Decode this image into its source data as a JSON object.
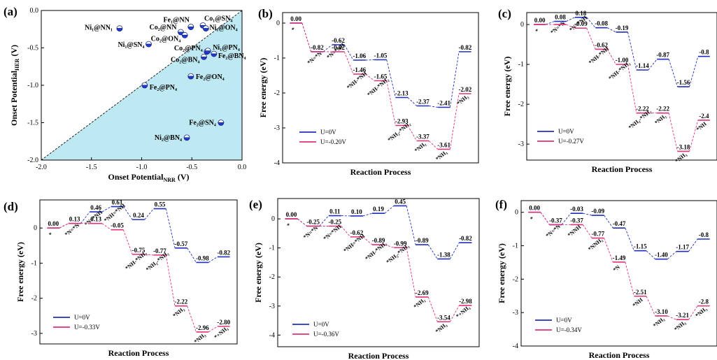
{
  "colors": {
    "blue": "#1f2fbf",
    "pink": "#e0307a",
    "black": "#222222",
    "fill": "#bfe9f2"
  },
  "chart_data": [
    {
      "id": "a",
      "panel_label": "(a)",
      "type": "scatter",
      "xlabel": "Onset Potential",
      "xlabel_sub": "NRR",
      "xlabel_unit": " (V)",
      "ylabel": "Onset Potential",
      "ylabel_sub": "HER",
      "ylabel_unit": " (V)",
      "xlim": [
        -2.0,
        0.0
      ],
      "ylim": [
        -2.0,
        0.0
      ],
      "xticks": [
        "-2.0",
        "-1.5",
        "-1.0",
        "-0.5",
        "0.0"
      ],
      "yticks": [
        "0.0",
        "-0.5",
        "-1.0",
        "-1.5",
        "-2.0"
      ],
      "points": [
        {
          "label": "Ni₁@NN₁",
          "x": -1.22,
          "y": -0.24
        },
        {
          "label": "Fe₁@NN",
          "x": -0.51,
          "y": -0.22
        },
        {
          "label": "Co₁@SN₄",
          "x": -0.39,
          "y": -0.2
        },
        {
          "label": "Ni₁@ON₄",
          "x": -0.36,
          "y": -0.24
        },
        {
          "label": "Co₂@NN",
          "x": -0.61,
          "y": -0.29
        },
        {
          "label": "Co₂@ON₄",
          "x": -0.57,
          "y": -0.33
        },
        {
          "label": "Ni₁@SN₄",
          "x": -0.93,
          "y": -0.45
        },
        {
          "label": "Co₂@PN₄",
          "x": -0.35,
          "y": -0.55
        },
        {
          "label": "Ni₁@PN₄",
          "x": -0.34,
          "y": -0.54
        },
        {
          "label": "Co₂@BN₄",
          "x": -0.38,
          "y": -0.62
        },
        {
          "label": "Fe₂@BN₄",
          "x": -0.28,
          "y": -0.58
        },
        {
          "label": "Fe₂@ON₄",
          "x": -0.51,
          "y": -0.88
        },
        {
          "label": "Fe₂@PN₄",
          "x": -0.97,
          "y": -1.0
        },
        {
          "label": "Fe₂@SN₄",
          "x": -0.21,
          "y": -1.5
        },
        {
          "label": "Ni₂@BN₄",
          "x": -0.55,
          "y": -1.7
        }
      ]
    },
    {
      "id": "b",
      "panel_label": "(b)",
      "type": "line",
      "xlabel": "Reaction Process",
      "ylabel": "Free energy (eV)",
      "ylim": [
        -4,
        0.3
      ],
      "yticks": [
        0,
        -1,
        -2,
        -3,
        -4
      ],
      "series": [
        {
          "name": "U=0V",
          "color_key": "blue",
          "steps": [
            {
              "x": 0,
              "y": 0.0,
              "label": "0.00",
              "species": "*"
            },
            {
              "x": 1,
              "y": -0.82,
              "label": "-0.82",
              "species": "*N=*N"
            },
            {
              "x": 2,
              "y": -0.62,
              "label": "-0.62",
              "species": "*N=*NH"
            },
            {
              "x": 3,
              "y": -1.06,
              "label": "-1.06"
            },
            {
              "x": 4,
              "y": -1.05,
              "label": "-1.05"
            },
            {
              "x": 5,
              "y": -2.13,
              "label": "-2.13"
            },
            {
              "x": 6,
              "y": -2.37,
              "label": "-2.37"
            },
            {
              "x": 7,
              "y": -2.41,
              "label": "-2.41"
            },
            {
              "x": 8,
              "y": -0.82,
              "label": "-0.82"
            }
          ]
        },
        {
          "name": "U=-0.20V",
          "color_key": "pink",
          "steps": [
            {
              "x": 0,
              "y": 0.0
            },
            {
              "x": 1,
              "y": -0.82
            },
            {
              "x": 2,
              "y": -0.82,
              "label": "-0.82"
            },
            {
              "x": 3,
              "y": -1.46,
              "label": "-1.46",
              "species": "*NH-*NH"
            },
            {
              "x": 4,
              "y": -1.65,
              "label": "-1.65",
              "species": "*NH-*NH₂"
            },
            {
              "x": 5,
              "y": -2.93,
              "label": "-2.93",
              "species": "*NH₂-*NH₂"
            },
            {
              "x": 6,
              "y": -3.37,
              "label": "-3.37",
              "species": "*NH₂"
            },
            {
              "x": 7,
              "y": -3.61,
              "label": "-3.61",
              "species": "*NH₃"
            },
            {
              "x": 8,
              "y": -2.02,
              "label": "-2.02",
              "species": "*NH₃"
            }
          ]
        }
      ]
    },
    {
      "id": "c",
      "panel_label": "(c)",
      "type": "line",
      "xlabel": "Reaction Process",
      "ylabel": "Free energy (eV)",
      "ylim": [
        -3.4,
        0.3
      ],
      "yticks": [
        0,
        -1,
        -2,
        -3
      ],
      "series": [
        {
          "name": "U=0V",
          "color_key": "blue",
          "steps": [
            {
              "x": 0,
              "y": 0.0,
              "label": "0.00",
              "species": "*"
            },
            {
              "x": 1,
              "y": 0.08,
              "label": "0.08",
              "species": "*N=*N"
            },
            {
              "x": 2,
              "y": 0.18,
              "label": "0.18",
              "species": "*N=*NH"
            },
            {
              "x": 3,
              "y": -0.08,
              "label": "-0.08"
            },
            {
              "x": 4,
              "y": -0.19,
              "label": "-0.19"
            },
            {
              "x": 5,
              "y": -1.14,
              "label": "-1.14"
            },
            {
              "x": 6,
              "y": -0.87,
              "label": "-0.87"
            },
            {
              "x": 7,
              "y": -1.56,
              "label": "-1.56"
            },
            {
              "x": 8,
              "y": -0.8,
              "label": "-0.8"
            }
          ]
        },
        {
          "name": "U=-0.27V",
          "color_key": "pink",
          "steps": [
            {
              "x": 0,
              "y": 0.0
            },
            {
              "x": 1,
              "y": 0.0
            },
            {
              "x": 2,
              "y": -0.09,
              "label": "-0.09"
            },
            {
              "x": 3,
              "y": -0.62,
              "label": "-0.62",
              "species": "*NH-*NH"
            },
            {
              "x": 4,
              "y": -1.0,
              "label": "-1.00",
              "species": "*NH-*NH₂"
            },
            {
              "x": 5,
              "y": -2.22,
              "label": "-2.22",
              "species": "*NH₂-*NH₂"
            },
            {
              "x": 6,
              "y": -2.22,
              "label": "-2.22",
              "species": "*NH₂"
            },
            {
              "x": 7,
              "y": -3.18,
              "label": "-3.18",
              "species": "*NH₃"
            },
            {
              "x": 8,
              "y": -2.4,
              "label": "-2.4",
              "species": "*NH"
            }
          ]
        }
      ]
    },
    {
      "id": "d",
      "panel_label": "(d)",
      "type": "line",
      "xlabel": "Reaction Process",
      "ylabel": "Free energy (eV)",
      "ylim": [
        -3.3,
        0.8
      ],
      "yticks": [
        0,
        -1,
        -2,
        -3
      ],
      "series": [
        {
          "name": "U=0V",
          "color_key": "blue",
          "steps": [
            {
              "x": 0,
              "y": 0.0,
              "label": "0.00",
              "species": "*"
            },
            {
              "x": 1,
              "y": 0.13,
              "label": "0.13",
              "species": "*N=*N"
            },
            {
              "x": 2,
              "y": 0.46,
              "label": "0.46",
              "species": "*N=*NH"
            },
            {
              "x": 3,
              "y": 0.61,
              "label": "0.61",
              "species": "*NH=*NH"
            },
            {
              "x": 4,
              "y": 0.24,
              "label": "0.24"
            },
            {
              "x": 5,
              "y": 0.55,
              "label": "0.55"
            },
            {
              "x": 6,
              "y": -0.57,
              "label": "-0.57"
            },
            {
              "x": 7,
              "y": -0.98,
              "label": "-0.98"
            },
            {
              "x": 8,
              "y": -0.82,
              "label": "-0.82"
            }
          ]
        },
        {
          "name": "U=-0.33V",
          "color_key": "pink",
          "steps": [
            {
              "x": 0,
              "y": 0.0
            },
            {
              "x": 1,
              "y": 0.13
            },
            {
              "x": 2,
              "y": 0.13,
              "label": "0.13"
            },
            {
              "x": 3,
              "y": -0.05,
              "label": "-0.05"
            },
            {
              "x": 4,
              "y": -0.75,
              "label": "-0.75",
              "species": "*NH-*NH₂"
            },
            {
              "x": 5,
              "y": -0.77,
              "label": "-0.77",
              "species": "*NH₂-*NH₂"
            },
            {
              "x": 6,
              "y": -2.22,
              "label": "-2.22",
              "species": "*NH₂"
            },
            {
              "x": 7,
              "y": -2.96,
              "label": "-2.96",
              "species": "*NH₃"
            },
            {
              "x": 8,
              "y": -2.8,
              "label": "-2.80",
              "species": "*+NH₃"
            }
          ]
        }
      ]
    },
    {
      "id": "e",
      "panel_label": "(e)",
      "type": "line",
      "xlabel": "Reaction Process",
      "ylabel": "Free energy (eV)",
      "ylim": [
        -4.4,
        0.7
      ],
      "yticks": [
        0,
        -1,
        -2,
        -3,
        -4
      ],
      "series": [
        {
          "name": "U=0V",
          "color_key": "blue",
          "steps": [
            {
              "x": 0,
              "y": 0.0,
              "label": "0.00",
              "species": "*"
            },
            {
              "x": 1,
              "y": -0.25,
              "label": "-0.25",
              "species": "*N=*N"
            },
            {
              "x": 2,
              "y": 0.11,
              "label": "0.11"
            },
            {
              "x": 3,
              "y": 0.1,
              "label": "0.10"
            },
            {
              "x": 4,
              "y": 0.19,
              "label": "0.19"
            },
            {
              "x": 5,
              "y": 0.45,
              "label": "0.45"
            },
            {
              "x": 6,
              "y": -0.89,
              "label": "-0.89"
            },
            {
              "x": 7,
              "y": -1.38,
              "label": "-1.38"
            },
            {
              "x": 8,
              "y": -0.82,
              "label": "-0.82"
            }
          ]
        },
        {
          "name": "U=-0.36V",
          "color_key": "pink",
          "steps": [
            {
              "x": 0,
              "y": 0.0
            },
            {
              "x": 1,
              "y": -0.25
            },
            {
              "x": 2,
              "y": -0.25,
              "label": "-0.25",
              "species": "*N=*NH"
            },
            {
              "x": 3,
              "y": -0.62,
              "label": "-0.62",
              "species": "*NH=*NH"
            },
            {
              "x": 4,
              "y": -0.89,
              "label": "-0.89",
              "species": "*NH-*NH₂"
            },
            {
              "x": 5,
              "y": -0.99,
              "label": "-0.99",
              "species": "*NH₂-*NH₂"
            },
            {
              "x": 6,
              "y": -2.69,
              "label": "-2.69",
              "species": "*NH₂"
            },
            {
              "x": 7,
              "y": -3.54,
              "label": "-3.54",
              "species": "*NH₃"
            },
            {
              "x": 8,
              "y": -2.98,
              "label": "-2.98",
              "species": "*+NH₃"
            }
          ]
        }
      ]
    },
    {
      "id": "f",
      "panel_label": "(f)",
      "type": "line",
      "xlabel": "Reaction Process",
      "ylabel": "Free energy (eV)",
      "ylim": [
        -4,
        0.35
      ],
      "yticks": [
        0,
        -1,
        -2,
        -3,
        -4
      ],
      "series": [
        {
          "name": "U=0V",
          "color_key": "blue",
          "steps": [
            {
              "x": 0,
              "y": 0.0,
              "label": "0.00",
              "species": "*"
            },
            {
              "x": 1,
              "y": -0.37,
              "label": "-0.37",
              "species": "*N=*N"
            },
            {
              "x": 2,
              "y": -0.03,
              "label": "-0.03"
            },
            {
              "x": 3,
              "y": -0.09,
              "label": "-0.09"
            },
            {
              "x": 4,
              "y": -0.47,
              "label": "-0.47"
            },
            {
              "x": 5,
              "y": -1.15,
              "label": "-1.15"
            },
            {
              "x": 6,
              "y": -1.4,
              "label": "-1.40"
            },
            {
              "x": 7,
              "y": -1.17,
              "label": "-1.17"
            },
            {
              "x": 8,
              "y": -0.8,
              "label": "-0.8"
            }
          ]
        },
        {
          "name": "U=-0.34V",
          "color_key": "pink",
          "steps": [
            {
              "x": 0,
              "y": 0.0
            },
            {
              "x": 1,
              "y": -0.37
            },
            {
              "x": 2,
              "y": -0.37,
              "label": "-0.37",
              "species": "*NNH"
            },
            {
              "x": 3,
              "y": -0.77,
              "label": "-0.77",
              "species": "*NNH₂"
            },
            {
              "x": 4,
              "y": -1.49,
              "label": "-1.49",
              "species": "*N"
            },
            {
              "x": 5,
              "y": -2.51,
              "label": "-2.51",
              "species": "*NH"
            },
            {
              "x": 6,
              "y": -3.1,
              "label": "-3.10",
              "species": "*NH₂"
            },
            {
              "x": 7,
              "y": -3.21,
              "label": "-3.21",
              "species": "*NH₃"
            },
            {
              "x": 8,
              "y": -2.8,
              "label": "-2.8",
              "species": "*NH₃"
            }
          ]
        }
      ]
    }
  ]
}
